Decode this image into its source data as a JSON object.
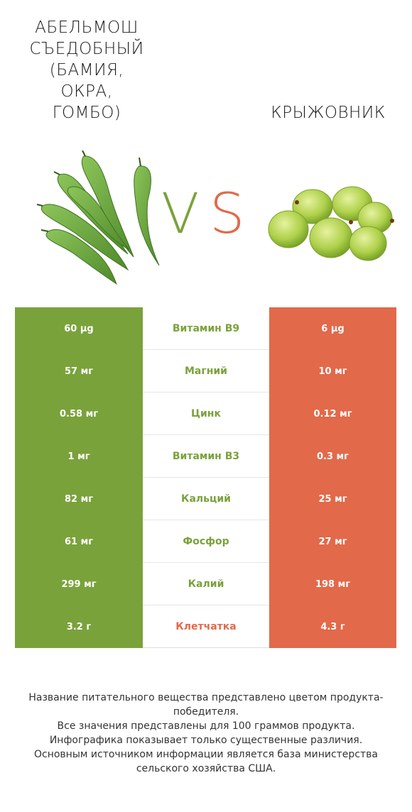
{
  "header": {
    "left_title": "АБЕЛЬМОШ\nСЪЕДОБНЫЙ\n(БАМИЯ,\nОКРА,\nГОМБО)",
    "right_title": "КРЫЖОВНИК",
    "vs_v": "V",
    "vs_s": "S"
  },
  "colors": {
    "left": "#7aa23b",
    "right": "#e2694a",
    "mid_default": "#7aa23b"
  },
  "images": {
    "left": "okra-image",
    "right": "gooseberry-image"
  },
  "rows": [
    {
      "left": "60 µg",
      "label": "Витамин B9",
      "right": "6 µg",
      "winner": "left"
    },
    {
      "left": "57 мг",
      "label": "Магний",
      "right": "10 мг",
      "winner": "left"
    },
    {
      "left": "0.58 мг",
      "label": "Цинк",
      "right": "0.12 мг",
      "winner": "left"
    },
    {
      "left": "1 мг",
      "label": "Витамин B3",
      "right": "0.3 мг",
      "winner": "left"
    },
    {
      "left": "82 мг",
      "label": "Кальций",
      "right": "25 мг",
      "winner": "left"
    },
    {
      "left": "61 мг",
      "label": "Фосфор",
      "right": "27 мг",
      "winner": "left"
    },
    {
      "left": "299 мг",
      "label": "Калий",
      "right": "198 мг",
      "winner": "left"
    },
    {
      "left": "3.2 г",
      "label": "Клетчатка",
      "right": "4.3 г",
      "winner": "right"
    }
  ],
  "footnote": "Название питательного вещества представлено цветом продукта-победителя.\nВсе значения представлены для 100 граммов продукта.\nИнфографика показывает только существенные различия.\nОсновным источником информации является база министерства сельского хозяйства США."
}
